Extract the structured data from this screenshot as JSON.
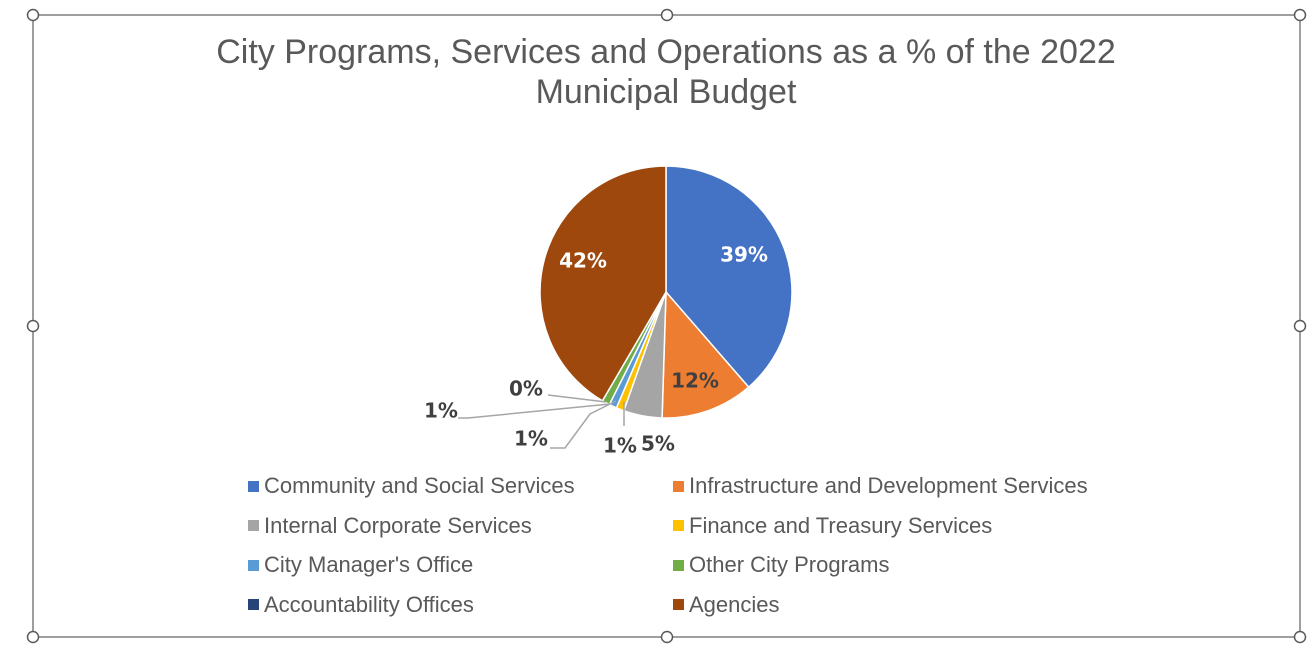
{
  "chart_data": {
    "type": "pie",
    "title_lines": [
      "City Programs, Services and Operations as a % of the 2022",
      "Municipal Budget"
    ],
    "slices": [
      {
        "name": "Community and Social Services",
        "value": 39,
        "label": "39%",
        "color": "#4472C4"
      },
      {
        "name": "Infrastructure and Development Services",
        "value": 12,
        "label": "12%",
        "color": "#ED7D31"
      },
      {
        "name": "Internal Corporate Services",
        "value": 5,
        "label": "5%",
        "color": "#A5A5A5"
      },
      {
        "name": "Finance and Treasury Services",
        "value": 1,
        "label": "1%",
        "color": "#FFC000"
      },
      {
        "name": "City Manager's Office",
        "value": 1,
        "label": "1%",
        "color": "#5B9BD5"
      },
      {
        "name": "Other City Programs",
        "value": 1,
        "label": "1%",
        "color": "#70AD47"
      },
      {
        "name": "Accountability Offices",
        "value": 0,
        "label": "0%",
        "color": "#264478"
      },
      {
        "name": "Agencies",
        "value": 42,
        "label": "42%",
        "color": "#9E480E"
      }
    ],
    "legend_position": "bottom"
  }
}
